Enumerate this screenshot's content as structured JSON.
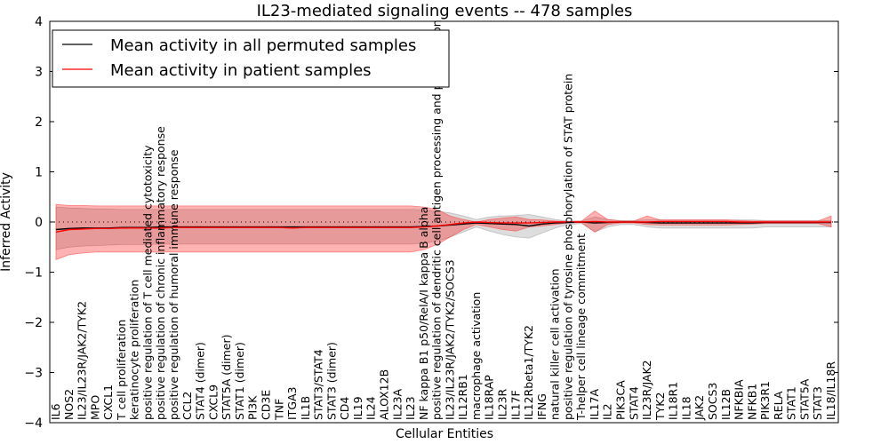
{
  "chart_data": {
    "type": "line",
    "title": "IL23-mediated signaling events -- 478 samples",
    "xlabel": "Cellular Entities",
    "ylabel": "Inferred Activity",
    "ylim": [
      -4,
      4
    ],
    "yticks": [
      "4",
      "3",
      "2",
      "1",
      "0",
      "−1",
      "−2",
      "−3",
      "−4"
    ],
    "ytick_values": [
      4,
      3,
      2,
      1,
      0,
      -1,
      -2,
      -3,
      -4
    ],
    "grid": false,
    "legend_position": "top-left",
    "categories": [
      "IL6",
      "NOS2",
      "IL23/IL23R/JAK2/TYK2",
      "MPO",
      "CXCL1",
      "T cell proliferation",
      "keratinocyte proliferation",
      "positive regulation of T cell mediated cytotoxicity",
      "positive regulation of chronic inflammatory response",
      "positive regulation of humoral immune response",
      "CCL2",
      "STAT4 (dimer)",
      "CXCL9",
      "STAT5A (dimer)",
      "STAT1 (dimer)",
      "PI3K",
      "CD3E",
      "TNF",
      "ITGA3",
      "IL1B",
      "STAT3/STAT4",
      "STAT3 (dimer)",
      "CD4",
      "IL19",
      "IL24",
      "ALOX12B",
      "IL23A",
      "IL23",
      "NF kappa B1 p50/RelA/I kappa B alpha",
      "positive regulation of dendritic cell antigen processing and presentation",
      "IL23/IL23R/JAK2/TYK2/SOCS3",
      "IL12RB1",
      "macrophage activation",
      "IL18RAP",
      "IL23R",
      "IL17F",
      "IL12Rbeta1/TYK2",
      "IFNG",
      "natural killer cell activation",
      "positive regulation of tyrosine phosphorylation of STAT protein",
      "T-helper cell lineage commitment",
      "IL17A",
      "IL2",
      "PIK3CA",
      "STAT4",
      "IL23R/JAK2",
      "TYK2",
      "IL18R1",
      "IL18",
      "JAK2",
      "SOCS3",
      "IL12B",
      "NFKBIA",
      "NFKB1",
      "PIK3R1",
      "RELA",
      "STAT1",
      "STAT5A",
      "STAT3",
      "IL18/IL18R"
    ],
    "series": [
      {
        "name": "Mean activity in all permuted samples",
        "color": "#000000",
        "values": [
          -0.15,
          -0.13,
          -0.12,
          -0.12,
          -0.12,
          -0.11,
          -0.11,
          -0.11,
          -0.1,
          -0.1,
          -0.1,
          -0.1,
          -0.1,
          -0.1,
          -0.1,
          -0.1,
          -0.1,
          -0.1,
          -0.1,
          -0.1,
          -0.1,
          -0.1,
          -0.1,
          -0.1,
          -0.1,
          -0.1,
          -0.1,
          -0.1,
          -0.09,
          -0.08,
          -0.06,
          -0.04,
          -0.02,
          -0.03,
          -0.04,
          -0.05,
          -0.08,
          -0.04,
          -0.02,
          -0.01,
          0.0,
          -0.02,
          -0.01,
          0.0,
          0.0,
          -0.01,
          -0.02,
          -0.02,
          -0.02,
          -0.02,
          -0.02,
          -0.02,
          -0.02,
          -0.02,
          -0.01,
          -0.01,
          -0.01,
          -0.01,
          -0.01,
          -0.01
        ],
        "band_low": [
          -0.55,
          -0.5,
          -0.48,
          -0.47,
          -0.46,
          -0.45,
          -0.45,
          -0.45,
          -0.44,
          -0.44,
          -0.44,
          -0.44,
          -0.44,
          -0.44,
          -0.44,
          -0.44,
          -0.44,
          -0.44,
          -0.44,
          -0.44,
          -0.44,
          -0.44,
          -0.44,
          -0.44,
          -0.44,
          -0.44,
          -0.44,
          -0.44,
          -0.42,
          -0.38,
          -0.3,
          -0.2,
          -0.1,
          -0.18,
          -0.25,
          -0.3,
          -0.32,
          -0.22,
          -0.12,
          -0.05,
          -0.03,
          -0.2,
          -0.1,
          -0.05,
          -0.05,
          -0.1,
          -0.12,
          -0.12,
          -0.12,
          -0.12,
          -0.12,
          -0.12,
          -0.12,
          -0.12,
          -0.1,
          -0.1,
          -0.1,
          -0.1,
          -0.1,
          -0.1
        ],
        "band_high": [
          0.3,
          0.28,
          0.27,
          0.26,
          0.26,
          0.25,
          0.25,
          0.25,
          0.25,
          0.25,
          0.25,
          0.25,
          0.25,
          0.25,
          0.25,
          0.25,
          0.25,
          0.25,
          0.25,
          0.25,
          0.25,
          0.25,
          0.25,
          0.25,
          0.25,
          0.25,
          0.25,
          0.25,
          0.24,
          0.22,
          0.18,
          0.12,
          0.05,
          0.1,
          0.12,
          0.13,
          0.15,
          0.1,
          0.05,
          0.02,
          0.02,
          0.1,
          0.05,
          0.03,
          0.03,
          0.04,
          0.04,
          0.04,
          0.04,
          0.04,
          0.04,
          0.04,
          0.04,
          0.04,
          0.03,
          0.03,
          0.03,
          0.03,
          0.03,
          0.03
        ]
      },
      {
        "name": "Mean activity in patient samples",
        "color": "#ff0000",
        "values": [
          -0.2,
          -0.15,
          -0.14,
          -0.13,
          -0.13,
          -0.12,
          -0.12,
          -0.12,
          -0.12,
          -0.11,
          -0.11,
          -0.11,
          -0.11,
          -0.11,
          -0.11,
          -0.11,
          -0.11,
          -0.11,
          -0.12,
          -0.11,
          -0.11,
          -0.11,
          -0.11,
          -0.11,
          -0.11,
          -0.11,
          -0.11,
          -0.11,
          -0.1,
          -0.08,
          -0.05,
          -0.02,
          0.0,
          -0.01,
          -0.02,
          -0.02,
          -0.02,
          -0.01,
          0.0,
          0.0,
          0.0,
          0.01,
          0.0,
          0.0,
          0.0,
          0.0,
          0.01,
          0.01,
          0.01,
          0.01,
          0.01,
          0.01,
          0.0,
          0.0,
          0.0,
          0.0,
          0.0,
          0.0,
          0.0,
          0.0
        ],
        "band_low": [
          -0.75,
          -0.65,
          -0.62,
          -0.6,
          -0.6,
          -0.6,
          -0.6,
          -0.6,
          -0.6,
          -0.6,
          -0.6,
          -0.6,
          -0.6,
          -0.6,
          -0.6,
          -0.6,
          -0.6,
          -0.6,
          -0.6,
          -0.6,
          -0.6,
          -0.6,
          -0.6,
          -0.6,
          -0.6,
          -0.6,
          -0.6,
          -0.6,
          -0.55,
          -0.45,
          -0.3,
          -0.15,
          -0.05,
          -0.1,
          -0.15,
          -0.18,
          -0.1,
          -0.08,
          -0.05,
          -0.02,
          -0.01,
          -0.2,
          -0.05,
          -0.02,
          -0.02,
          -0.05,
          -0.06,
          -0.06,
          -0.06,
          -0.06,
          -0.06,
          -0.06,
          -0.05,
          -0.04,
          -0.03,
          -0.03,
          -0.03,
          -0.03,
          -0.03,
          -0.1
        ],
        "band_high": [
          0.35,
          0.33,
          0.33,
          0.32,
          0.32,
          0.32,
          0.32,
          0.32,
          0.32,
          0.32,
          0.32,
          0.32,
          0.32,
          0.32,
          0.32,
          0.32,
          0.32,
          0.32,
          0.32,
          0.32,
          0.32,
          0.32,
          0.32,
          0.32,
          0.32,
          0.32,
          0.32,
          0.32,
          0.3,
          0.25,
          0.12,
          0.05,
          0.0,
          0.05,
          0.08,
          0.1,
          0.05,
          0.04,
          0.02,
          0.01,
          0.02,
          0.22,
          0.05,
          0.02,
          0.02,
          0.12,
          0.04,
          0.04,
          0.04,
          0.04,
          0.04,
          0.04,
          0.03,
          0.02,
          0.02,
          0.02,
          0.02,
          0.02,
          0.02,
          0.12
        ]
      }
    ]
  }
}
